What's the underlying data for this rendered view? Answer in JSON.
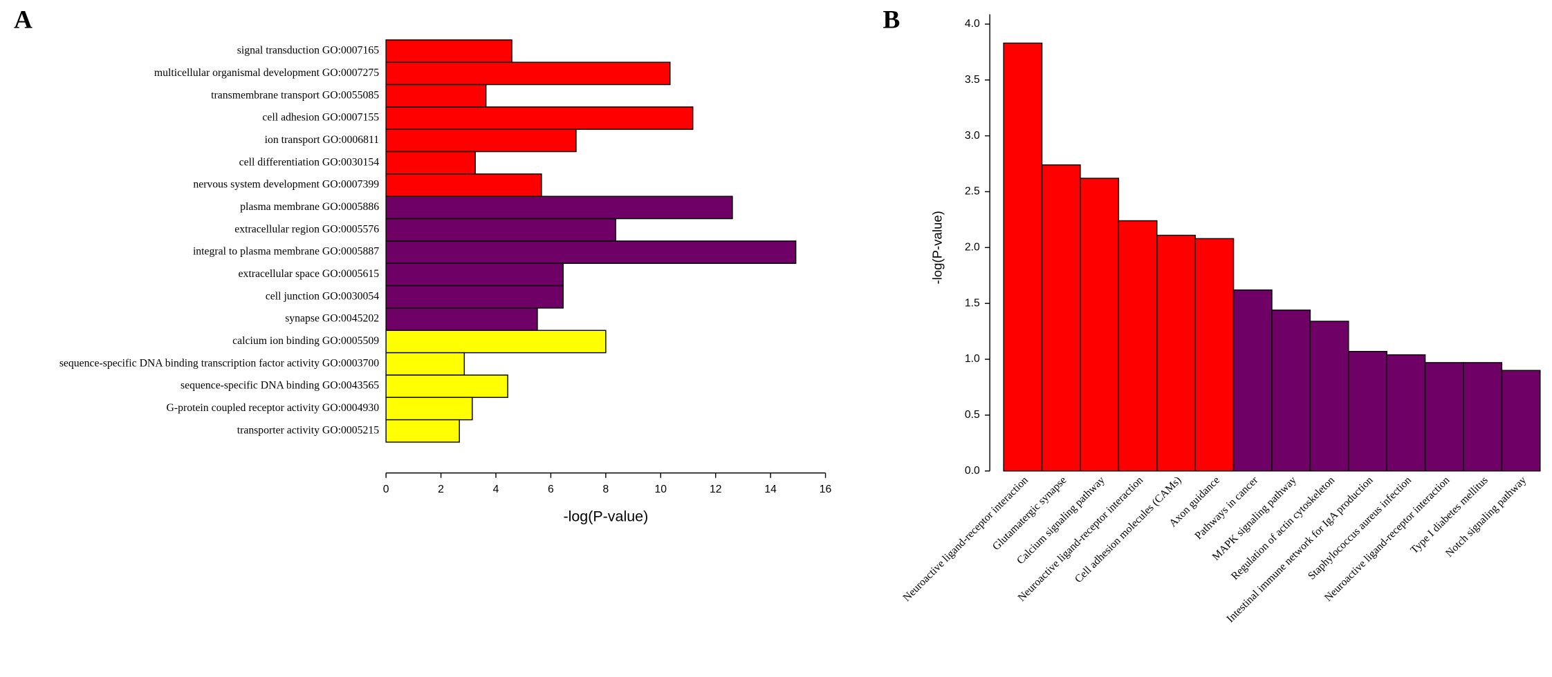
{
  "chart_data": [
    {
      "type": "bar",
      "orientation": "horizontal",
      "panel_label": "A",
      "categories": [
        "signal transduction GO:0007165",
        "multicellular organismal development GO:0007275",
        "transmembrane transport GO:0055085",
        "cell adhesion GO:0007155",
        "ion transport  GO:0006811",
        "cell differentiation GO:0030154",
        "nervous system development GO:0007399",
        "plasma membrane  GO:0005886",
        "extracellular region GO:0005576",
        "integral to plasma membrane GO:0005887",
        "extracellular space  GO:0005615",
        "cell junction GO:0030054",
        "synapse  GO:0045202",
        "calcium ion binding GO:0005509",
        "sequence-specific DNA binding transcription factor activity GO:0003700",
        "sequence-specific DNA binding GO:0043565",
        "G-protein coupled receptor activity GO:0004930",
        "transporter activity  GO:0005215"
      ],
      "values": [
        4.58,
        10.34,
        3.64,
        11.17,
        6.92,
        3.25,
        5.66,
        12.61,
        8.36,
        14.92,
        6.45,
        6.45,
        5.51,
        8.0,
        2.85,
        4.43,
        3.14,
        2.67
      ],
      "colors": [
        "#ff0000",
        "#ff0000",
        "#ff0000",
        "#ff0000",
        "#ff0000",
        "#ff0000",
        "#ff0000",
        "#6e0066",
        "#6e0066",
        "#6e0066",
        "#6e0066",
        "#6e0066",
        "#6e0066",
        "#ffff00",
        "#ffff00",
        "#ffff00",
        "#ffff00",
        "#ffff00"
      ],
      "xlabel": "-log(P-value)",
      "xlim": [
        0,
        16
      ],
      "xticks": [
        0,
        2,
        4,
        6,
        8,
        10,
        12,
        14,
        16
      ]
    },
    {
      "type": "bar",
      "orientation": "vertical",
      "panel_label": "B",
      "categories": [
        "Neuroactive ligand-receptor interaction",
        "Glutamatergic synapse",
        "Calcium signaling pathway",
        "Neuroactive ligand-receptor interaction",
        "Cell adhesion molecules (CAMs)",
        "Axon guidance",
        "Pathways in cancer",
        "MAPK signaling pathway",
        "Regulation of actin cytoskeleton",
        "Intestinal immune network for IgA production",
        "Staphylococcus aureus infection",
        "Neuroactive ligand-receptor interaction",
        "Type I diabetes mellitus",
        "Notch signaling pathway"
      ],
      "values": [
        3.83,
        2.74,
        2.62,
        2.24,
        2.11,
        2.08,
        1.62,
        1.44,
        1.34,
        1.07,
        1.04,
        0.97,
        0.97,
        0.9
      ],
      "colors": [
        "#ff0000",
        "#ff0000",
        "#ff0000",
        "#ff0000",
        "#ff0000",
        "#ff0000",
        "#6e0066",
        "#6e0066",
        "#6e0066",
        "#6e0066",
        "#6e0066",
        "#6e0066",
        "#6e0066",
        "#6e0066"
      ],
      "ylabel": "-log(P-value)",
      "ylim": [
        0,
        4
      ],
      "yticks": [
        {
          "value": 0,
          "label": "0.0"
        },
        0.5,
        {
          "value": 1,
          "label": "1.0"
        },
        1.5,
        {
          "value": 2,
          "label": "2.0"
        },
        2.5,
        {
          "value": 3,
          "label": "3.0"
        },
        3.5,
        {
          "value": 4,
          "label": "4.0"
        }
      ]
    }
  ]
}
